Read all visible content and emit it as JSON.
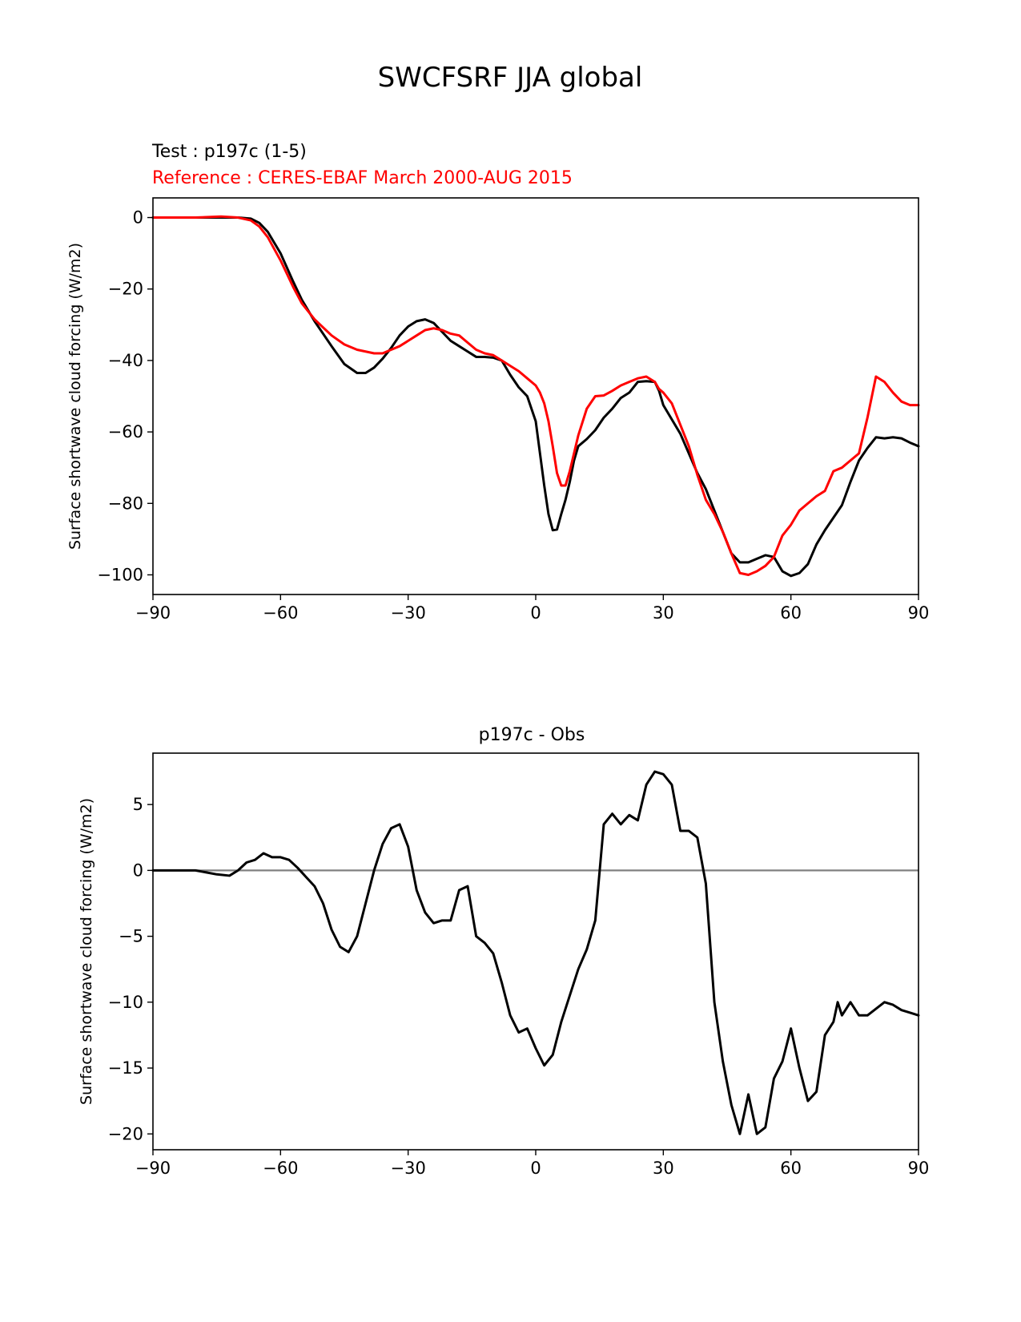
{
  "figure": {
    "title": "SWCFSRF JJA global"
  },
  "top_panel": {
    "test_label": "Test : p197c (1-5)",
    "reference_label": "Reference : CERES-EBAF March 2000-AUG 2015"
  },
  "bottom_panel": {
    "title": "p197c - Obs"
  },
  "colors": {
    "test": "#000000",
    "reference": "#ff0000",
    "zero_line": "#808080"
  },
  "chart_data": [
    {
      "type": "line",
      "ylabel": "Surface shortwave cloud forcing (W/m2)",
      "xlabel": "",
      "xlim": [
        -90,
        90
      ],
      "ylim": [
        -105.5,
        5.5
      ],
      "xticks": [
        -90,
        -60,
        -30,
        0,
        30,
        60,
        90
      ],
      "yticks": [
        0,
        -20,
        -40,
        -60,
        -80,
        -100
      ],
      "grid": false,
      "series": [
        {
          "name": "Test : p197c (1-5)",
          "color": "#000000",
          "x": [
            -90,
            -80,
            -70,
            -67,
            -65,
            -63,
            -60,
            -57,
            -55,
            -52,
            -48,
            -45,
            -42,
            -40,
            -38,
            -36,
            -34,
            -32,
            -30,
            -28,
            -26,
            -24,
            -22,
            -20,
            -18,
            -16,
            -14,
            -12,
            -10,
            -8,
            -6,
            -4,
            -2,
            0,
            1,
            2,
            3,
            4,
            5,
            6,
            7,
            8,
            9,
            10,
            12,
            14,
            16,
            18,
            20,
            22,
            24,
            26,
            28,
            29,
            30,
            32,
            34,
            36,
            38,
            40,
            42,
            44,
            46,
            48,
            50,
            52,
            54,
            56,
            58,
            60,
            62,
            64,
            66,
            68,
            70,
            72,
            74,
            76,
            78,
            80,
            82,
            84,
            86,
            88,
            90
          ],
          "y": [
            0,
            0,
            0,
            -0.3,
            -1.5,
            -4,
            -10,
            -18,
            -23,
            -29,
            -36,
            -41,
            -43.5,
            -43.5,
            -42,
            -39.5,
            -36.5,
            -33,
            -30.5,
            -29,
            -28.5,
            -29.5,
            -32,
            -34.5,
            -36,
            -37.5,
            -39,
            -39,
            -39.2,
            -40,
            -44,
            -47.5,
            -50,
            -57,
            -66,
            -75,
            -83,
            -87.5,
            -87.3,
            -83,
            -79,
            -74,
            -68,
            -64,
            -62,
            -59.5,
            -56,
            -53.5,
            -50.5,
            -49,
            -46,
            -45.8,
            -46,
            -48.5,
            -52.5,
            -56.5,
            -60.5,
            -66,
            -71.5,
            -76,
            -82,
            -88,
            -94,
            -96.5,
            -96.5,
            -95.5,
            -94.5,
            -95,
            -99,
            -100.3,
            -99.5,
            -97,
            -91.5,
            -87.5,
            -84,
            -80.5,
            -74,
            -68,
            -64.5,
            -61.5,
            -61.8,
            -61.5,
            -61.8,
            -63,
            -64
          ]
        },
        {
          "name": "Reference : CERES-EBAF March 2000-AUG 2015",
          "color": "#ff0000",
          "x": [
            -90,
            -80,
            -74,
            -70,
            -67,
            -65,
            -63,
            -60,
            -57,
            -55,
            -52,
            -48,
            -45,
            -42,
            -40,
            -38,
            -36,
            -34,
            -32,
            -30,
            -28,
            -26,
            -24,
            -22,
            -20,
            -18,
            -16,
            -14,
            -12,
            -10,
            -8,
            -6,
            -4,
            -2,
            0,
            1,
            2,
            3,
            4,
            5,
            6,
            7,
            8,
            9,
            10,
            12,
            14,
            16,
            18,
            20,
            22,
            24,
            26,
            28,
            29,
            30,
            32,
            34,
            36,
            38,
            40,
            42,
            44,
            46,
            48,
            50,
            52,
            54,
            56,
            58,
            60,
            62,
            64,
            66,
            68,
            70,
            72,
            74,
            76,
            78,
            80,
            82,
            84,
            86,
            88,
            90
          ],
          "y": [
            0,
            0,
            0.3,
            0,
            -0.8,
            -2.5,
            -5.5,
            -12,
            -19.5,
            -24,
            -28.5,
            -33,
            -35.5,
            -37,
            -37.5,
            -38,
            -38,
            -37,
            -36,
            -34.5,
            -33,
            -31.5,
            -31,
            -31.5,
            -32.5,
            -33,
            -35,
            -37,
            -38,
            -38.5,
            -40,
            -41.5,
            -43,
            -45,
            -47,
            -49,
            -52,
            -57,
            -64,
            -71.5,
            -75,
            -75,
            -71,
            -66,
            -61,
            -53.5,
            -50,
            -49.8,
            -48.5,
            -47,
            -46,
            -45,
            -44.5,
            -46,
            -48,
            -49,
            -52,
            -58,
            -64,
            -72,
            -79,
            -83,
            -88,
            -94,
            -99.5,
            -100,
            -99,
            -97.5,
            -95,
            -89,
            -86,
            -82,
            -80,
            -78,
            -76.5,
            -71,
            -70,
            -68,
            -66,
            -56,
            -44.5,
            -46,
            -49,
            -51.5,
            -52.5,
            -52.5
          ]
        }
      ]
    },
    {
      "type": "line",
      "title": "p197c - Obs",
      "ylabel": "Surface shortwave cloud forcing (W/m2)",
      "xlabel": "",
      "xlim": [
        -90,
        90
      ],
      "ylim": [
        -21.2,
        8.9
      ],
      "xticks": [
        -90,
        -60,
        -30,
        0,
        30,
        60,
        90
      ],
      "yticks": [
        5,
        0,
        -5,
        -10,
        -15,
        -20
      ],
      "grid": false,
      "zero_line": true,
      "series": [
        {
          "name": "p197c - Obs",
          "color": "#000000",
          "x": [
            -90,
            -80,
            -75,
            -72,
            -70,
            -68,
            -66,
            -64,
            -62,
            -60,
            -58,
            -56,
            -54,
            -52,
            -50,
            -48,
            -46,
            -44,
            -42,
            -40,
            -38,
            -36,
            -34,
            -32,
            -30,
            -28,
            -26,
            -24,
            -22,
            -20,
            -18,
            -16,
            -14,
            -12,
            -10,
            -8,
            -6,
            -4,
            -2,
            0,
            2,
            4,
            6,
            8,
            10,
            12,
            14,
            16,
            18,
            20,
            22,
            24,
            26,
            28,
            30,
            32,
            34,
            36,
            38,
            40,
            42,
            44,
            46,
            48,
            50,
            52,
            54,
            56,
            58,
            60,
            62,
            64,
            66,
            68,
            70,
            71,
            72,
            74,
            76,
            78,
            80,
            82,
            84,
            86,
            88,
            90
          ],
          "y": [
            0,
            0,
            -0.3,
            -0.4,
            0,
            0.6,
            0.8,
            1.3,
            1.0,
            1.0,
            0.8,
            0.2,
            -0.5,
            -1.2,
            -2.5,
            -4.5,
            -5.8,
            -6.2,
            -5.0,
            -2.5,
            0,
            2.0,
            3.2,
            3.5,
            1.8,
            -1.5,
            -3.2,
            -4.0,
            -3.8,
            -3.8,
            -1.5,
            -1.2,
            -5.0,
            -5.5,
            -6.3,
            -8.5,
            -11.0,
            -12.3,
            -12.0,
            -13.5,
            -14.8,
            -14.0,
            -11.5,
            -9.5,
            -7.5,
            -6.0,
            -3.8,
            3.5,
            4.3,
            3.5,
            4.2,
            3.8,
            6.5,
            7.5,
            7.3,
            6.5,
            3.0,
            3.0,
            2.5,
            -1.0,
            -10.0,
            -14.5,
            -17.8,
            -20.0,
            -17.0,
            -20.0,
            -19.5,
            -15.8,
            -14.5,
            -12.0,
            -15.0,
            -17.5,
            -16.8,
            -12.5,
            -11.5,
            -10.0,
            -11.0,
            -10.0,
            -11.0,
            -11.0,
            -10.5,
            -10.0,
            -10.2,
            -10.6,
            -10.8,
            -11.0
          ]
        }
      ]
    }
  ]
}
